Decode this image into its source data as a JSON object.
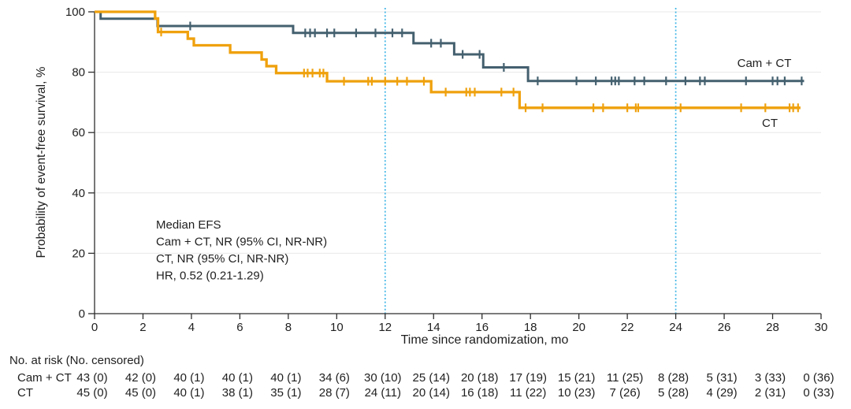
{
  "chart_data": {
    "type": "line",
    "subtype": "kaplan_meier_step",
    "title": "",
    "xlabel": "Time since randomization, mo",
    "ylabel": "Probability of event-free survival, %",
    "xlim": [
      0,
      30
    ],
    "ylim": [
      0,
      100
    ],
    "x_ticks": [
      0,
      2,
      4,
      6,
      8,
      10,
      12,
      14,
      16,
      18,
      20,
      22,
      24,
      26,
      28,
      30
    ],
    "y_ticks": [
      0,
      20,
      40,
      60,
      80,
      100
    ],
    "grid": "horizontal",
    "reference_lines_x": [
      12,
      24
    ],
    "reference_line_color": "#41b6e6",
    "annotation_lines": [
      "Median EFS",
      "Cam + CT, NR (95% CI, NR-NR)",
      "CT, NR (95% CI, NR-NR)",
      "HR, 0.52 (0.21-1.29)"
    ],
    "series": [
      {
        "name": "Cam + CT",
        "color": "#44606f",
        "steps": [
          [
            0,
            100
          ],
          [
            0.25,
            97.7
          ],
          [
            2.6,
            95.3
          ],
          [
            8.2,
            93.0
          ],
          [
            13.17,
            89.6
          ],
          [
            14.85,
            85.9
          ],
          [
            16.05,
            81.6
          ],
          [
            17.9,
            77.1
          ]
        ],
        "end_x": 29.3,
        "censor_x": [
          3.95,
          8.7,
          8.9,
          9.1,
          9.6,
          9.9,
          10.8,
          11.6,
          12.3,
          12.7,
          13.9,
          14.3,
          15.2,
          15.9,
          16.9,
          18.3,
          19.9,
          20.7,
          21.35,
          21.5,
          21.65,
          22.3,
          22.7,
          23.6,
          24.4,
          25.0,
          25.2,
          26.9,
          28.0,
          28.2,
          28.5,
          29.2
        ]
      },
      {
        "name": "CT",
        "color": "#efa10d",
        "steps": [
          [
            0,
            100
          ],
          [
            2.5,
            97.8
          ],
          [
            2.62,
            93.3
          ],
          [
            3.85,
            91.1
          ],
          [
            4.1,
            88.9
          ],
          [
            5.6,
            86.5
          ],
          [
            6.9,
            84.2
          ],
          [
            7.1,
            82.0
          ],
          [
            7.5,
            79.7
          ],
          [
            9.6,
            77.0
          ],
          [
            13.9,
            73.4
          ],
          [
            17.55,
            68.2
          ]
        ],
        "end_x": 29.15,
        "censor_x": [
          2.75,
          8.65,
          8.8,
          9.0,
          9.3,
          9.45,
          10.3,
          11.3,
          11.45,
          12.0,
          12.5,
          12.9,
          13.6,
          14.5,
          15.35,
          15.5,
          15.7,
          16.8,
          17.3,
          17.8,
          18.5,
          20.6,
          21.0,
          22.0,
          22.35,
          22.45,
          24.2,
          26.7,
          27.7,
          28.7,
          28.85,
          29.05
        ]
      }
    ]
  },
  "risk_table": {
    "header": "No. at risk (No. censored)",
    "time_points": [
      0,
      2,
      4,
      6,
      8,
      10,
      12,
      14,
      16,
      18,
      20,
      22,
      24,
      26,
      28,
      30
    ],
    "rows": [
      {
        "label": "Cam + CT",
        "values": [
          "43 (0)",
          "42 (0)",
          "40 (1)",
          "40 (1)",
          "40 (1)",
          "34 (6)",
          "30 (10)",
          "25 (14)",
          "20 (18)",
          "17 (19)",
          "15 (21)",
          "11 (25)",
          "8 (28)",
          "5 (31)",
          "3 (33)",
          "0 (36)"
        ]
      },
      {
        "label": "CT",
        "values": [
          "45 (0)",
          "45 (0)",
          "40 (1)",
          "38 (1)",
          "35 (1)",
          "28 (7)",
          "24 (11)",
          "20 (14)",
          "16 (18)",
          "11 (22)",
          "10 (23)",
          "7 (26)",
          "5 (28)",
          "4 (29)",
          "2 (31)",
          "0 (33)"
        ]
      }
    ]
  },
  "colors": {
    "cam_ct": "#44606f",
    "ct": "#efa10d",
    "reference": "#41b6e6",
    "grid": "#e8e8e8",
    "axis": "#2e2e2e",
    "text": "#1f1f1f"
  }
}
